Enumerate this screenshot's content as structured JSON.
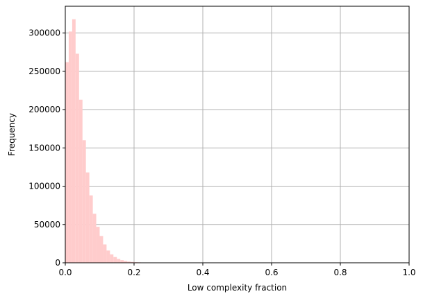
{
  "chart_data": {
    "type": "bar",
    "title": "",
    "xlabel": "Low complexity fraction",
    "ylabel": "Frequency",
    "xlim": [
      0,
      1
    ],
    "ylim": [
      0,
      335000
    ],
    "grid": true,
    "bar_color": "#ffcccc",
    "grid_color": "#b0b0b0",
    "bin_width": 0.01,
    "bin_start": 0.0,
    "values": [
      262000,
      302000,
      318000,
      273000,
      213000,
      160000,
      118000,
      88000,
      64000,
      47000,
      35000,
      24000,
      16000,
      11000,
      7500,
      5000,
      3500,
      2400,
      1600,
      1100,
      800,
      600,
      450,
      320,
      230,
      170,
      120,
      90,
      60,
      40
    ],
    "x_ticks": [
      {
        "value": 0.0,
        "label": "0.0"
      },
      {
        "value": 0.2,
        "label": "0.2"
      },
      {
        "value": 0.4,
        "label": "0.4"
      },
      {
        "value": 0.6,
        "label": "0.6"
      },
      {
        "value": 0.8,
        "label": "0.8"
      },
      {
        "value": 1.0,
        "label": "1.0"
      }
    ],
    "y_ticks": [
      {
        "value": 0,
        "label": "0"
      },
      {
        "value": 50000,
        "label": "50000"
      },
      {
        "value": 100000,
        "label": "100000"
      },
      {
        "value": 150000,
        "label": "150000"
      },
      {
        "value": 200000,
        "label": "200000"
      },
      {
        "value": 250000,
        "label": "250000"
      },
      {
        "value": 300000,
        "label": "300000"
      }
    ]
  }
}
